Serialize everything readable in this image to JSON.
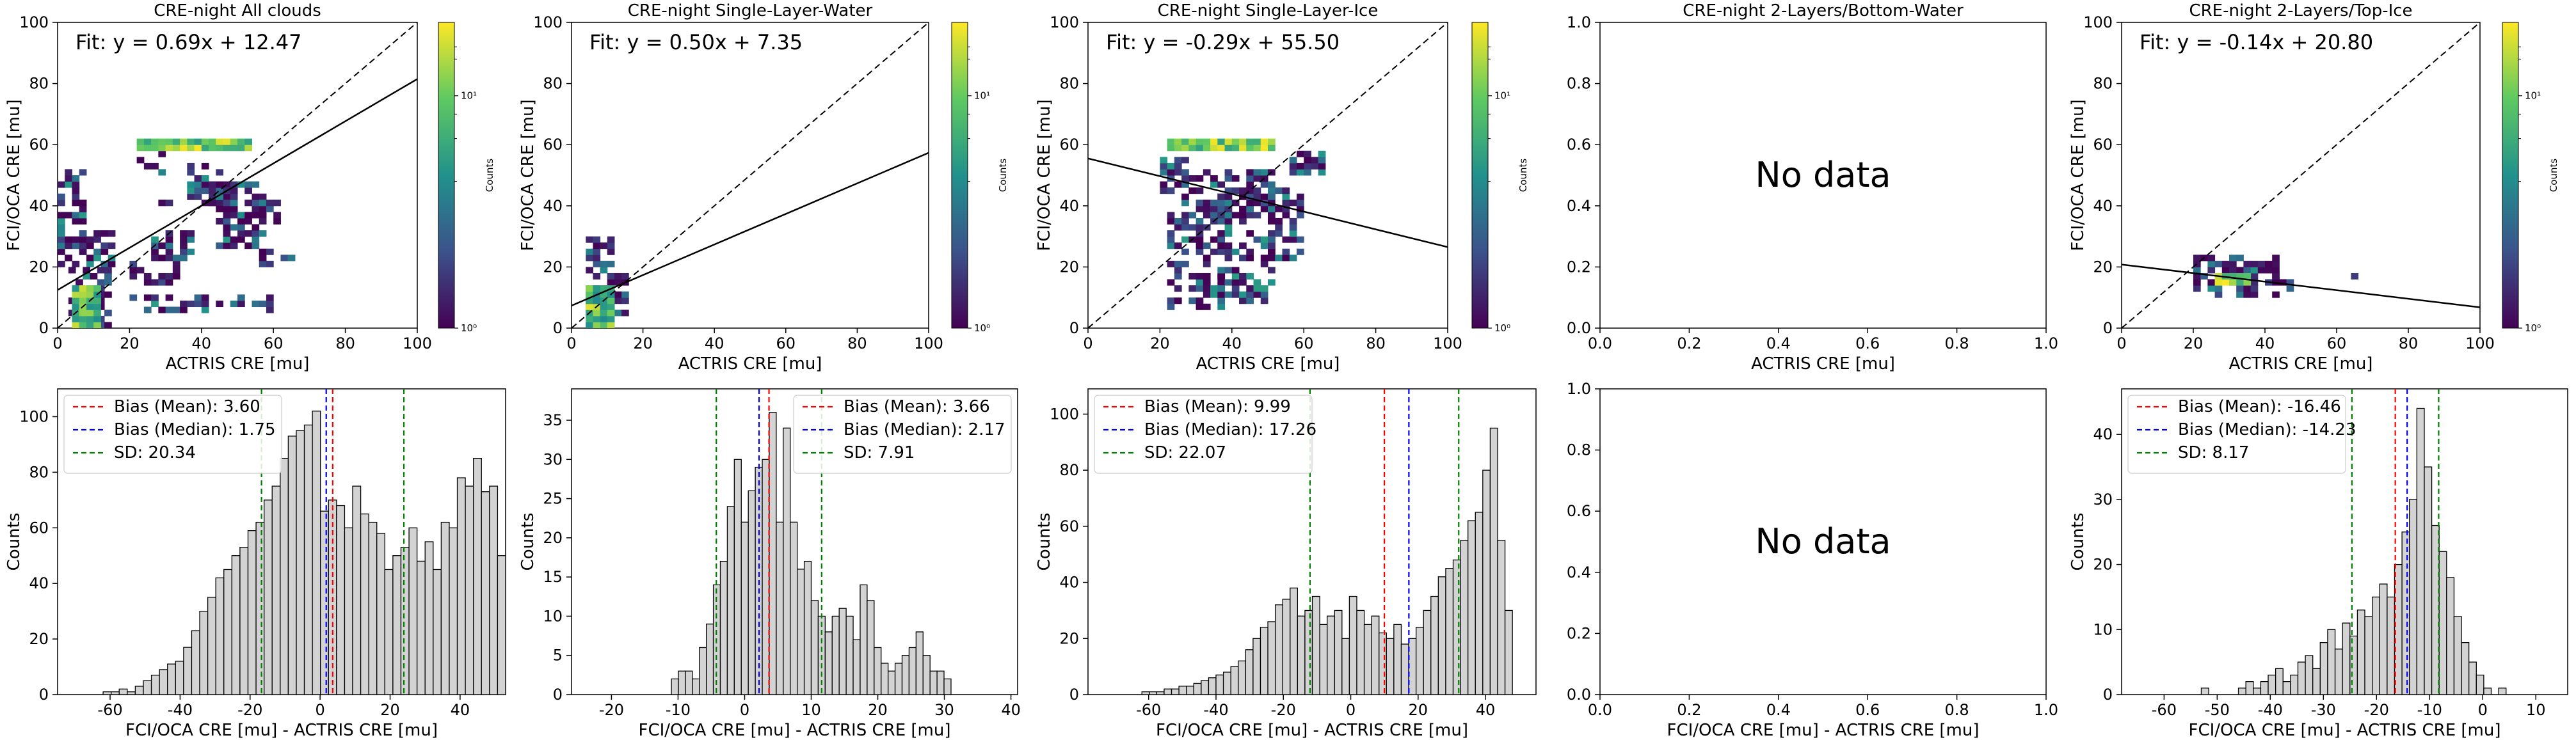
{
  "figure": {
    "title": ""
  },
  "chart_data": [
    {
      "type": "heatmap",
      "title": "CRE-night All clouds",
      "xlabel": "ACTRIS CRE [mu]",
      "ylabel": "FCI/OCA CRE [mu]",
      "xlim": [
        0,
        100
      ],
      "ylim": [
        0,
        100
      ],
      "xticks": [
        0,
        20,
        40,
        60,
        80,
        100
      ],
      "yticks": [
        0,
        20,
        40,
        60,
        80,
        100
      ],
      "fit_text": "Fit: y = 0.69x + 12.47",
      "fit": {
        "slope": 0.69,
        "intercept": 12.47
      },
      "one_to_one_line": true,
      "colorbar": {
        "label": "Counts",
        "scale": "log",
        "ticks": [
          "10⁰",
          "10¹"
        ]
      },
      "cells": [
        [
          0,
          22,
          8,
          30
        ],
        [
          0,
          20,
          15,
          12
        ],
        [
          3,
          0,
          12,
          20
        ],
        [
          20,
          14,
          14,
          8
        ],
        [
          26,
          22,
          12,
          10
        ],
        [
          22,
          50,
          7,
          8
        ],
        [
          36,
          40,
          12,
          14
        ],
        [
          44,
          26,
          14,
          14
        ],
        [
          42,
          40,
          16,
          8
        ],
        [
          56,
          20,
          10,
          6
        ],
        [
          26,
          36,
          6,
          8
        ],
        [
          52,
          34,
          10,
          8
        ],
        [
          20,
          5,
          40,
          6
        ]
      ],
      "hot_band": {
        "x": [
          22,
          54
        ],
        "y": [
          58,
          62
        ]
      }
    },
    {
      "type": "heatmap",
      "title": "CRE-night Single-Layer-Water",
      "xlabel": "ACTRIS CRE [mu]",
      "ylabel": "FCI/OCA CRE [mu]",
      "xlim": [
        0,
        100
      ],
      "ylim": [
        0,
        100
      ],
      "xticks": [
        0,
        20,
        40,
        60,
        80,
        100
      ],
      "yticks": [
        0,
        20,
        40,
        60,
        80,
        100
      ],
      "fit_text": "Fit: y = 0.50x + 7.35",
      "fit": {
        "slope": 0.5,
        "intercept": 7.35
      },
      "one_to_one_line": true,
      "colorbar": {
        "label": "Counts",
        "scale": "log",
        "ticks": [
          "10⁰",
          "10¹"
        ]
      },
      "cells": [
        [
          4,
          0,
          8,
          30
        ],
        [
          6,
          2,
          6,
          10
        ],
        [
          10,
          4,
          6,
          14
        ]
      ],
      "hot_band": null
    },
    {
      "type": "heatmap",
      "title": "CRE-night Single-Layer-Ice",
      "xlabel": "ACTRIS CRE [mu]",
      "ylabel": "FCI/OCA CRE [mu]",
      "xlim": [
        0,
        100
      ],
      "ylim": [
        0,
        100
      ],
      "xticks": [
        0,
        20,
        40,
        60,
        80,
        100
      ],
      "yticks": [
        0,
        20,
        40,
        60,
        80,
        100
      ],
      "fit_text": "Fit: y = -0.29x + 55.50",
      "fit": {
        "slope": -0.29,
        "intercept": 55.5
      },
      "one_to_one_line": true,
      "colorbar": {
        "label": "Counts",
        "scale": "log",
        "ticks": [
          "10⁰",
          "10¹"
        ]
      },
      "cells": [
        [
          22,
          6,
          16,
          46
        ],
        [
          36,
          8,
          16,
          44
        ],
        [
          50,
          22,
          10,
          24
        ],
        [
          20,
          44,
          8,
          12
        ],
        [
          56,
          50,
          10,
          8
        ]
      ],
      "hot_band": {
        "x": [
          22,
          52
        ],
        "y": [
          58,
          62
        ]
      }
    },
    {
      "type": "heatmap",
      "title": "CRE-night 2-Layers/Bottom-Water",
      "xlabel": "ACTRIS CRE [mu]",
      "ylabel": "",
      "xlim": [
        0,
        1
      ],
      "ylim": [
        0,
        1
      ],
      "xticks": [
        0.0,
        0.2,
        0.4,
        0.6,
        0.8,
        1.0
      ],
      "yticks": [
        0.0,
        0.2,
        0.4,
        0.6,
        0.8,
        1.0
      ],
      "no_data": "No data",
      "cells": []
    },
    {
      "type": "heatmap",
      "title": "CRE-night 2-Layers/Top-Ice",
      "xlabel": "ACTRIS CRE [mu]",
      "ylabel": "FCI/OCA CRE [mu]",
      "xlim": [
        0,
        100
      ],
      "ylim": [
        0,
        100
      ],
      "xticks": [
        0,
        20,
        40,
        60,
        80,
        100
      ],
      "yticks": [
        0,
        20,
        40,
        60,
        80,
        100
      ],
      "fit_text": "Fit: y = -0.14x + 20.80",
      "fit": {
        "slope": -0.14,
        "intercept": 20.8
      },
      "one_to_one_line": true,
      "colorbar": {
        "label": "Counts",
        "scale": "log",
        "ticks": [
          "10⁰",
          "10¹"
        ]
      },
      "cells": [
        [
          20,
          10,
          24,
          14
        ],
        [
          42,
          12,
          6,
          6
        ],
        [
          64,
          16,
          4,
          2
        ]
      ],
      "hot_band": {
        "x": [
          26,
          36
        ],
        "y": [
          14,
          18
        ]
      }
    },
    {
      "type": "bar",
      "title": "",
      "xlabel": "FCI/OCA CRE [mu] - ACTRIS CRE [mu]",
      "ylabel": "Counts",
      "xlim": [
        -75,
        53
      ],
      "ylim": [
        0,
        110
      ],
      "xticks": [
        -60,
        -40,
        -20,
        0,
        20,
        40
      ],
      "yticks": [
        0,
        20,
        40,
        60,
        80,
        100
      ],
      "legend": "top-left",
      "bin_start": -62,
      "bin_width": 2.3,
      "values": [
        1,
        1,
        2,
        1,
        3,
        5,
        7,
        9,
        11,
        12,
        17,
        23,
        30,
        35,
        42,
        45,
        50,
        53,
        59,
        62,
        70,
        75,
        85,
        93,
        95,
        97,
        102,
        66,
        70,
        68,
        60,
        75,
        65,
        62,
        58,
        45,
        50,
        53,
        60,
        48,
        55,
        45,
        62,
        60,
        78,
        75,
        85,
        73,
        75,
        50
      ],
      "lines": [
        {
          "label": "Bias (Mean): 3.60",
          "value": 3.6,
          "color": "#ff0000"
        },
        {
          "label": "Bias (Median): 1.75",
          "value": 1.75,
          "color": "#0000ff"
        },
        {
          "label": "SD: 20.34",
          "value": -16.74,
          "color": "#008000"
        },
        {
          "label": "",
          "value": 23.94,
          "color": "#008000"
        }
      ]
    },
    {
      "type": "bar",
      "title": "",
      "xlabel": "FCI/OCA CRE [mu] - ACTRIS CRE [mu]",
      "ylabel": "Counts",
      "xlim": [
        -26,
        41
      ],
      "ylim": [
        0,
        39
      ],
      "xticks": [
        -20,
        -10,
        0,
        10,
        20,
        30,
        40
      ],
      "yticks": [
        0,
        5,
        10,
        15,
        20,
        25,
        30,
        35
      ],
      "legend": "top-right",
      "bin_start": -11,
      "bin_width": 1.05,
      "values": [
        2,
        3,
        3,
        2,
        6,
        9,
        14,
        17,
        24,
        30,
        22,
        26,
        29,
        30,
        36,
        22,
        34,
        22,
        16,
        17,
        12,
        10,
        8,
        10,
        11,
        10,
        7,
        14,
        12,
        6,
        4,
        3,
        4,
        5,
        6,
        8,
        5,
        3,
        3,
        2
      ],
      "lines": [
        {
          "label": "Bias (Mean): 3.66",
          "value": 3.66,
          "color": "#ff0000"
        },
        {
          "label": "Bias (Median): 2.17",
          "value": 2.17,
          "color": "#0000ff"
        },
        {
          "label": "SD: 7.91",
          "value": -4.25,
          "color": "#008000"
        },
        {
          "label": "",
          "value": 11.57,
          "color": "#008000"
        }
      ]
    },
    {
      "type": "bar",
      "title": "",
      "xlabel": "FCI/OCA CRE [mu] - ACTRIS CRE [mu]",
      "ylabel": "Counts",
      "xlim": [
        -78,
        55
      ],
      "ylim": [
        0,
        109
      ],
      "xticks": [
        -60,
        -40,
        -20,
        0,
        20,
        40
      ],
      "yticks": [
        0,
        20,
        40,
        60,
        80,
        100
      ],
      "legend": "top-left",
      "bin_start": -62,
      "bin_width": 2.2,
      "values": [
        1,
        1,
        1,
        2,
        2,
        3,
        3,
        4,
        5,
        6,
        7,
        8,
        10,
        12,
        16,
        20,
        24,
        26,
        32,
        34,
        38,
        28,
        30,
        35,
        25,
        28,
        30,
        20,
        35,
        30,
        25,
        28,
        22,
        20,
        25,
        18,
        20,
        24,
        30,
        35,
        42,
        45,
        48,
        55,
        62,
        65,
        80,
        95,
        55,
        30
      ],
      "lines": [
        {
          "label": "Bias (Mean): 9.99",
          "value": 9.99,
          "color": "#ff0000"
        },
        {
          "label": "Bias (Median): 17.26",
          "value": 17.26,
          "color": "#0000ff"
        },
        {
          "label": "SD: 22.07",
          "value": -12.08,
          "color": "#008000"
        },
        {
          "label": "",
          "value": 32.06,
          "color": "#008000"
        }
      ]
    },
    {
      "type": "bar",
      "title": "",
      "xlabel": "FCI/OCA CRE [mu] - ACTRIS CRE [mu]",
      "ylabel": "",
      "xlim": [
        0,
        1
      ],
      "ylim": [
        0,
        1
      ],
      "xticks": [
        0.0,
        0.2,
        0.4,
        0.6,
        0.8,
        1.0
      ],
      "yticks": [
        0.0,
        0.2,
        0.4,
        0.6,
        0.8,
        1.0
      ],
      "no_data": "No data",
      "values": []
    },
    {
      "type": "bar",
      "title": "",
      "xlabel": "FCI/OCA CRE [mu] - ACTRIS CRE [mu]",
      "ylabel": "Counts",
      "xlim": [
        -68,
        16
      ],
      "ylim": [
        0,
        47
      ],
      "xticks": [
        -60,
        -50,
        -40,
        -30,
        -20,
        -10,
        0,
        10
      ],
      "yticks": [
        0,
        10,
        20,
        30,
        40
      ],
      "legend": "top-left",
      "bin_start": -53,
      "bin_width": 1.4,
      "values": [
        1,
        0,
        0,
        0,
        0,
        1,
        2,
        1,
        2,
        3,
        4,
        2,
        3,
        5,
        6,
        4,
        8,
        10,
        7,
        11,
        9,
        13,
        12,
        15,
        17,
        15,
        20,
        25,
        30,
        44,
        35,
        26,
        22,
        18,
        12,
        8,
        5,
        3,
        1,
        0,
        1
      ],
      "lines": [
        {
          "label": "Bias (Mean): -16.46",
          "value": -16.46,
          "color": "#ff0000"
        },
        {
          "label": "Bias (Median): -14.23",
          "value": -14.23,
          "color": "#0000ff"
        },
        {
          "label": "SD: 8.17",
          "value": -24.63,
          "color": "#008000"
        },
        {
          "label": "",
          "value": -8.29,
          "color": "#008000"
        }
      ]
    }
  ]
}
